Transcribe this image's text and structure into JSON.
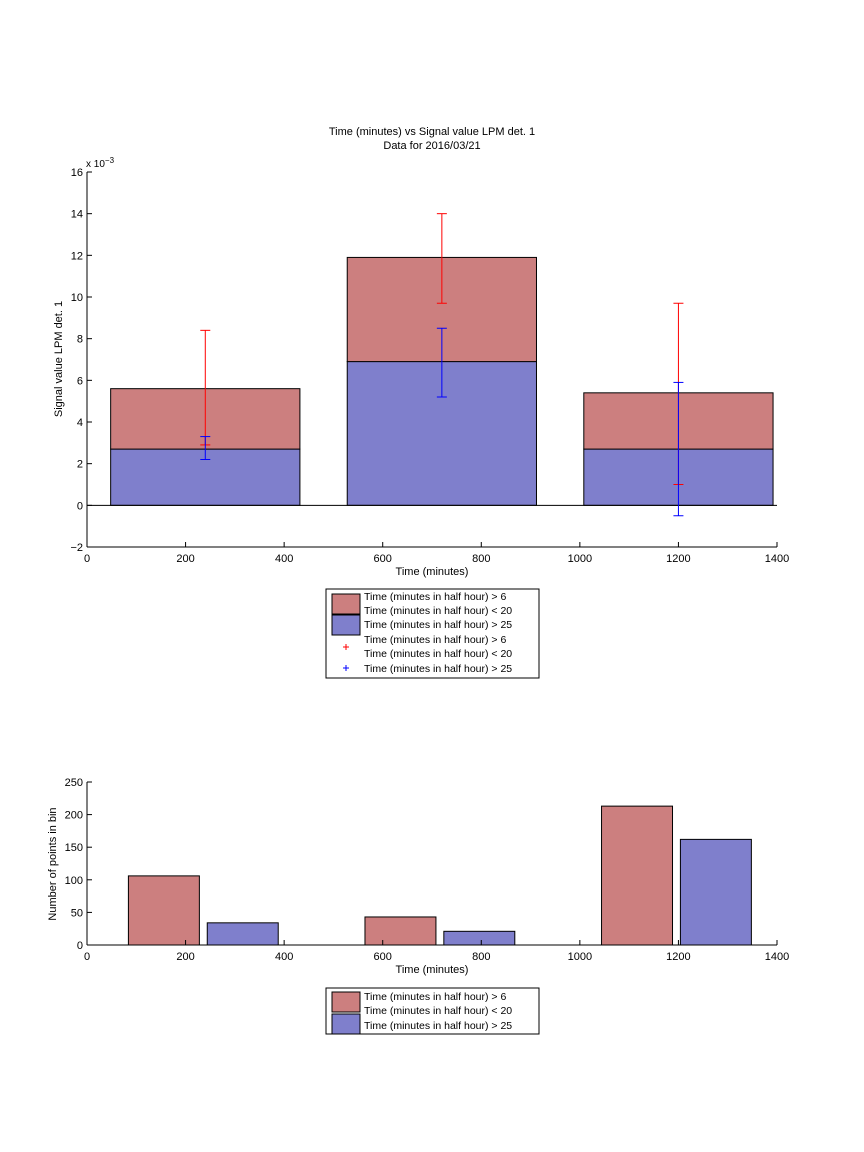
{
  "chart_data": [
    {
      "type": "bar",
      "title": "Time (minutes) vs Signal value LPM det. 1",
      "subtitle": "Data for 2016/03/21",
      "xlabel": "Time (minutes)",
      "ylabel": "Signal value LPM det. 1",
      "y_exponent_label": "x 10",
      "y_exponent_power": "−3",
      "xlim": [
        0,
        1400
      ],
      "ylim": [
        -0.002,
        0.016
      ],
      "xticks": [
        "0",
        "200",
        "400",
        "600",
        "800",
        "1000",
        "1200",
        "1400"
      ],
      "yticks": [
        "−2",
        "0",
        "2",
        "4",
        "6",
        "8",
        "10",
        "12",
        "14",
        "16"
      ],
      "stacked": true,
      "bin_centers": [
        240,
        720,
        1200
      ],
      "bin_edges": [
        [
          48,
          432
        ],
        [
          528,
          912
        ],
        [
          1008,
          1392
        ]
      ],
      "series": [
        {
          "name": "Time (minutes in half hour) > 6",
          "legend_line2": "Time (minutes in half hour) < 20",
          "values": [
            0.0029,
            0.005,
            0.0027
          ],
          "color": "#cc7f7f"
        },
        {
          "name": "Time (minutes in half hour) > 25",
          "values": [
            0.0027,
            0.0069,
            0.0027
          ],
          "color": "#7f7fcc"
        }
      ],
      "errorbars": [
        {
          "name": "Time (minutes in half hour) > 6",
          "legend_line2": "Time (minutes in half hour) < 20",
          "color": "#ff0000",
          "mean": [
            0.0056,
            0.0119,
            0.0053
          ],
          "low": [
            0.0029,
            0.0097,
            0.001
          ],
          "high": [
            0.0084,
            0.014,
            0.0097
          ]
        },
        {
          "name": "Time (minutes in half hour) > 25",
          "color": "#0000ff",
          "mean": [
            0.0027,
            0.0069,
            0.0027
          ],
          "low": [
            0.0022,
            0.0052,
            -0.0005
          ],
          "high": [
            0.0033,
            0.0085,
            0.0059
          ]
        }
      ],
      "legend_entries": [
        "Time (minutes in half hour) > 6",
        "Time (minutes in half hour) < 20",
        "Time (minutes in half hour) > 25",
        "Time (minutes in half hour) > 6",
        "Time (minutes in half hour) < 20",
        "Time (minutes in half hour) > 25"
      ],
      "legend_placement": "below plot"
    },
    {
      "type": "bar",
      "xlabel": "Time (minutes)",
      "ylabel": "Number of points in bin",
      "xlim": [
        0,
        1400
      ],
      "ylim": [
        0,
        250
      ],
      "xticks": [
        "0",
        "200",
        "400",
        "600",
        "800",
        "1000",
        "1200",
        "1400"
      ],
      "yticks": [
        "0",
        "50",
        "100",
        "150",
        "200",
        "250"
      ],
      "grouped": true,
      "bars": [
        {
          "series": 0,
          "x0": 84,
          "x1": 228,
          "value": 106
        },
        {
          "series": 1,
          "x0": 244,
          "x1": 388,
          "value": 34
        },
        {
          "series": 0,
          "x0": 564,
          "x1": 708,
          "value": 43
        },
        {
          "series": 1,
          "x0": 724,
          "x1": 868,
          "value": 21
        },
        {
          "series": 0,
          "x0": 1044,
          "x1": 1188,
          "value": 213
        },
        {
          "series": 1,
          "x0": 1204,
          "x1": 1348,
          "value": 162
        }
      ],
      "series": [
        {
          "name": "Time (minutes in half hour) > 6",
          "legend_line2": "Time (minutes in half hour) < 20",
          "color": "#cc7f7f"
        },
        {
          "name": "Time (minutes in half hour) > 25",
          "color": "#7f7fcc"
        }
      ],
      "legend_entries": [
        "Time (minutes in half hour) > 6",
        "Time (minutes in half hour) < 20",
        "Time (minutes in half hour) > 25"
      ],
      "legend_placement": "below plot"
    }
  ]
}
